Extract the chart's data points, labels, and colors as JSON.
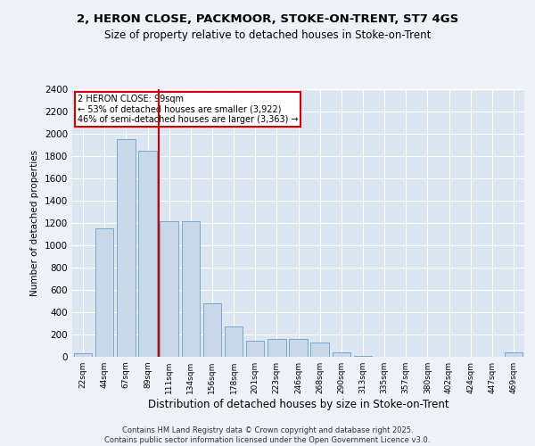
{
  "title1": "2, HERON CLOSE, PACKMOOR, STOKE-ON-TRENT, ST7 4GS",
  "title2": "Size of property relative to detached houses in Stoke-on-Trent",
  "xlabel": "Distribution of detached houses by size in Stoke-on-Trent",
  "ylabel": "Number of detached properties",
  "categories": [
    "22sqm",
    "44sqm",
    "67sqm",
    "89sqm",
    "111sqm",
    "134sqm",
    "156sqm",
    "178sqm",
    "201sqm",
    "223sqm",
    "246sqm",
    "268sqm",
    "290sqm",
    "313sqm",
    "335sqm",
    "357sqm",
    "380sqm",
    "402sqm",
    "424sqm",
    "447sqm",
    "469sqm"
  ],
  "values": [
    30,
    1150,
    1950,
    1850,
    1220,
    1220,
    480,
    270,
    145,
    160,
    160,
    130,
    40,
    5,
    2,
    2,
    2,
    2,
    2,
    2,
    40
  ],
  "bar_color": "#c8d8e8",
  "bar_edge_color": "#7aa8c8",
  "vline_color": "#cc0000",
  "annotation_text": "2 HERON CLOSE: 99sqm\n← 53% of detached houses are smaller (3,922)\n46% of semi-detached houses are larger (3,363) →",
  "annotation_box_color": "#cc0000",
  "background_color": "#eef2f8",
  "plot_bg_color": "#dce6f0",
  "grid_color": "#ffffff",
  "footer1": "Contains HM Land Registry data © Crown copyright and database right 2025.",
  "footer2": "Contains public sector information licensed under the Open Government Licence v3.0.",
  "ylim": [
    0,
    2400
  ],
  "yticks": [
    0,
    200,
    400,
    600,
    800,
    1000,
    1200,
    1400,
    1600,
    1800,
    2000,
    2200,
    2400
  ]
}
